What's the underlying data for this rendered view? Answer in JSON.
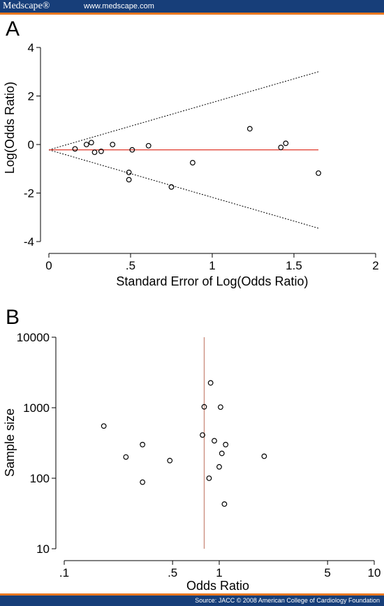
{
  "header": {
    "brand": "Medscape®",
    "url": "www.medscape.com"
  },
  "footer": {
    "source": "Source: JACC © 2008 American College of Cardiology Foundation"
  },
  "colors": {
    "header_bg": "#173e79",
    "accent": "#e8771f",
    "ref_line_a": "#e0392b",
    "ref_line_b": "#c98a7a"
  },
  "chart_data": [
    {
      "panel_label": "A",
      "type": "scatter",
      "xlabel": "Standard Error of Log(Odds Ratio)",
      "ylabel": "Log(Odds Ratio)",
      "xlim": [
        0,
        2
      ],
      "ylim": [
        -4,
        4
      ],
      "x_ticks": [
        0,
        0.5,
        1,
        1.5,
        2
      ],
      "x_tick_labels": [
        "0",
        ".5",
        "1",
        "1.5",
        "2"
      ],
      "y_ticks": [
        4,
        2,
        0,
        -2,
        -4
      ],
      "y_tick_labels": [
        "4",
        "2",
        "0",
        "-2",
        "-4"
      ],
      "grid": false,
      "pooled_log_or": -0.22,
      "funnel_limits": [
        {
          "x": [
            0,
            1.65
          ],
          "y": [
            -0.22,
            3.0
          ]
        },
        {
          "x": [
            0,
            1.65
          ],
          "y": [
            -0.22,
            -3.45
          ]
        }
      ],
      "points": [
        {
          "x": 0.16,
          "y": -0.18
        },
        {
          "x": 0.23,
          "y": 0.0
        },
        {
          "x": 0.26,
          "y": 0.08
        },
        {
          "x": 0.28,
          "y": -0.32
        },
        {
          "x": 0.32,
          "y": -0.28
        },
        {
          "x": 0.39,
          "y": 0.0
        },
        {
          "x": 0.49,
          "y": -1.15
        },
        {
          "x": 0.49,
          "y": -1.45
        },
        {
          "x": 0.51,
          "y": -0.22
        },
        {
          "x": 0.61,
          "y": -0.05
        },
        {
          "x": 0.75,
          "y": -1.75
        },
        {
          "x": 0.88,
          "y": -0.75
        },
        {
          "x": 1.23,
          "y": 0.65
        },
        {
          "x": 1.42,
          "y": -0.12
        },
        {
          "x": 1.45,
          "y": 0.05
        },
        {
          "x": 1.65,
          "y": -1.18
        }
      ]
    },
    {
      "panel_label": "B",
      "type": "scatter",
      "xlabel": "Odds Ratio",
      "ylabel": "Sample size",
      "x_scale": "log",
      "y_scale": "log",
      "xlim": [
        0.1,
        10
      ],
      "ylim": [
        10,
        10000
      ],
      "x_ticks": [
        0.1,
        0.5,
        1,
        5,
        10
      ],
      "x_tick_labels": [
        ".1",
        ".5",
        "1",
        "5",
        "10"
      ],
      "y_ticks": [
        10000,
        1000,
        100,
        10
      ],
      "y_tick_labels": [
        "10000",
        "1000",
        "100",
        "10"
      ],
      "grid": false,
      "pooled_or": 0.8,
      "points": [
        {
          "x": 0.18,
          "y": 550
        },
        {
          "x": 0.25,
          "y": 200
        },
        {
          "x": 0.32,
          "y": 300
        },
        {
          "x": 0.32,
          "y": 88
        },
        {
          "x": 0.48,
          "y": 178
        },
        {
          "x": 0.78,
          "y": 410
        },
        {
          "x": 0.8,
          "y": 1030
        },
        {
          "x": 0.86,
          "y": 100
        },
        {
          "x": 0.88,
          "y": 2250
        },
        {
          "x": 0.93,
          "y": 340
        },
        {
          "x": 1.0,
          "y": 145
        },
        {
          "x": 1.02,
          "y": 1020
        },
        {
          "x": 1.04,
          "y": 225
        },
        {
          "x": 1.08,
          "y": 43
        },
        {
          "x": 1.1,
          "y": 300
        },
        {
          "x": 1.95,
          "y": 205
        }
      ]
    }
  ]
}
